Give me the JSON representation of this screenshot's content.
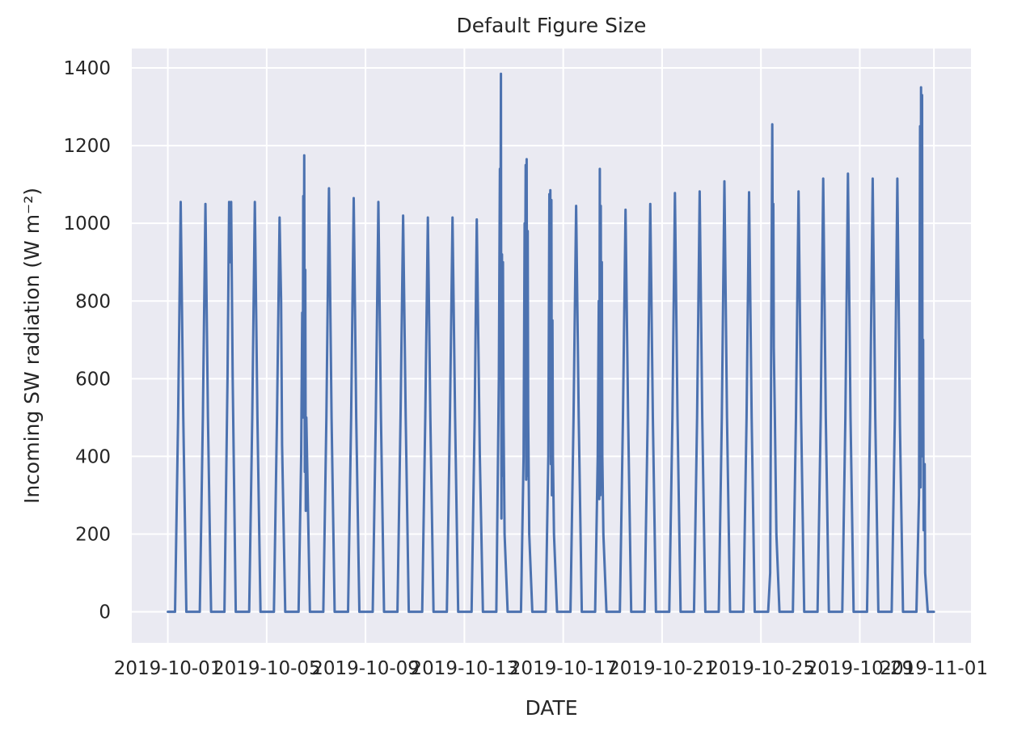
{
  "chart_data": {
    "type": "line",
    "title": "Default Figure Size",
    "xlabel": "DATE",
    "ylabel": "Incoming SW radiation (W m⁻²)",
    "x_range": [
      "2019-09-29T13:00",
      "2019-11-02T12:00"
    ],
    "ylim": [
      -80,
      1450
    ],
    "x_ticks": [
      "2019-10-01",
      "2019-10-05",
      "2019-10-09",
      "2019-10-13",
      "2019-10-17",
      "2019-10-21",
      "2019-10-25",
      "2019-10-29",
      "2019-11-01"
    ],
    "y_ticks": [
      0,
      200,
      400,
      600,
      800,
      1000,
      1200,
      1400
    ],
    "grid": true,
    "colors": {
      "background": "#eaeaf2",
      "grid": "#ffffff",
      "line": "#4c72b0"
    },
    "series": [
      {
        "name": "",
        "points": [
          [
            "2019-10-01T00:00",
            0
          ],
          [
            "2019-10-01T07:00",
            0
          ],
          [
            "2019-10-01T10:00",
            500
          ],
          [
            "2019-10-01T12:30",
            1055
          ],
          [
            "2019-10-01T15:00",
            500
          ],
          [
            "2019-10-01T18:00",
            0
          ],
          [
            "2019-10-02T07:00",
            0
          ],
          [
            "2019-10-02T10:00",
            500
          ],
          [
            "2019-10-02T12:30",
            1050
          ],
          [
            "2019-10-02T15:00",
            500
          ],
          [
            "2019-10-02T18:00",
            0
          ],
          [
            "2019-10-03T07:00",
            0
          ],
          [
            "2019-10-03T10:00",
            600
          ],
          [
            "2019-10-03T11:30",
            1055
          ],
          [
            "2019-10-03T12:30",
            900
          ],
          [
            "2019-10-03T13:30",
            1055
          ],
          [
            "2019-10-03T15:00",
            600
          ],
          [
            "2019-10-03T18:00",
            0
          ],
          [
            "2019-10-04T07:00",
            0
          ],
          [
            "2019-10-04T10:00",
            500
          ],
          [
            "2019-10-04T12:30",
            1055
          ],
          [
            "2019-10-04T15:00",
            500
          ],
          [
            "2019-10-04T18:00",
            0
          ],
          [
            "2019-10-05T07:00",
            0
          ],
          [
            "2019-10-05T10:00",
            500
          ],
          [
            "2019-10-05T12:30",
            1015
          ],
          [
            "2019-10-05T14:00",
            800
          ],
          [
            "2019-10-05T15:00",
            430
          ],
          [
            "2019-10-05T18:00",
            0
          ],
          [
            "2019-10-06T07:00",
            0
          ],
          [
            "2019-10-06T09:30",
            400
          ],
          [
            "2019-10-06T10:30",
            770
          ],
          [
            "2019-10-06T11:00",
            500
          ],
          [
            "2019-10-06T11:30",
            1070
          ],
          [
            "2019-10-06T12:00",
            720
          ],
          [
            "2019-10-06T12:30",
            1175
          ],
          [
            "2019-10-06T13:00",
            360
          ],
          [
            "2019-10-06T13:30",
            880
          ],
          [
            "2019-10-06T14:00",
            260
          ],
          [
            "2019-10-06T14:30",
            500
          ],
          [
            "2019-10-06T18:00",
            0
          ],
          [
            "2019-10-07T07:00",
            0
          ],
          [
            "2019-10-07T10:00",
            500
          ],
          [
            "2019-10-07T12:30",
            1090
          ],
          [
            "2019-10-07T15:00",
            500
          ],
          [
            "2019-10-07T18:00",
            0
          ],
          [
            "2019-10-08T07:00",
            0
          ],
          [
            "2019-10-08T10:00",
            500
          ],
          [
            "2019-10-08T12:30",
            1065
          ],
          [
            "2019-10-08T15:00",
            500
          ],
          [
            "2019-10-08T18:00",
            0
          ],
          [
            "2019-10-09T07:00",
            0
          ],
          [
            "2019-10-09T10:00",
            500
          ],
          [
            "2019-10-09T12:30",
            1055
          ],
          [
            "2019-10-09T15:00",
            500
          ],
          [
            "2019-10-09T18:00",
            0
          ],
          [
            "2019-10-10T07:00",
            0
          ],
          [
            "2019-10-10T10:00",
            500
          ],
          [
            "2019-10-10T12:30",
            1020
          ],
          [
            "2019-10-10T15:00",
            500
          ],
          [
            "2019-10-10T18:00",
            0
          ],
          [
            "2019-10-11T07:00",
            0
          ],
          [
            "2019-10-11T10:00",
            500
          ],
          [
            "2019-10-11T12:30",
            1015
          ],
          [
            "2019-10-11T15:00",
            500
          ],
          [
            "2019-10-11T18:00",
            0
          ],
          [
            "2019-10-12T07:00",
            0
          ],
          [
            "2019-10-12T10:00",
            500
          ],
          [
            "2019-10-12T12:30",
            1015
          ],
          [
            "2019-10-12T15:00",
            500
          ],
          [
            "2019-10-12T18:00",
            0
          ],
          [
            "2019-10-13T07:00",
            0
          ],
          [
            "2019-10-13T10:00",
            500
          ],
          [
            "2019-10-13T12:00",
            1010
          ],
          [
            "2019-10-13T13:30",
            700
          ],
          [
            "2019-10-13T15:00",
            400
          ],
          [
            "2019-10-13T18:00",
            0
          ],
          [
            "2019-10-14T07:00",
            0
          ],
          [
            "2019-10-14T09:30",
            600
          ],
          [
            "2019-10-14T10:30",
            1140
          ],
          [
            "2019-10-14T11:00",
            950
          ],
          [
            "2019-10-14T11:30",
            1385
          ],
          [
            "2019-10-14T12:00",
            240
          ],
          [
            "2019-10-14T12:30",
            920
          ],
          [
            "2019-10-14T13:00",
            350
          ],
          [
            "2019-10-14T13:30",
            900
          ],
          [
            "2019-10-14T14:00",
            500
          ],
          [
            "2019-10-14T15:00",
            200
          ],
          [
            "2019-10-14T18:00",
            0
          ],
          [
            "2019-10-15T07:00",
            0
          ],
          [
            "2019-10-15T09:30",
            400
          ],
          [
            "2019-10-15T10:30",
            1000
          ],
          [
            "2019-10-15T11:00",
            800
          ],
          [
            "2019-10-15T11:30",
            1150
          ],
          [
            "2019-10-15T12:00",
            340
          ],
          [
            "2019-10-15T12:30",
            1165
          ],
          [
            "2019-10-15T13:00",
            350
          ],
          [
            "2019-10-15T13:30",
            980
          ],
          [
            "2019-10-15T14:00",
            500
          ],
          [
            "2019-10-15T15:00",
            200
          ],
          [
            "2019-10-15T18:00",
            0
          ],
          [
            "2019-10-16T07:00",
            0
          ],
          [
            "2019-10-16T09:30",
            400
          ],
          [
            "2019-10-16T10:30",
            1075
          ],
          [
            "2019-10-16T11:00",
            700
          ],
          [
            "2019-10-16T11:30",
            1085
          ],
          [
            "2019-10-16T12:00",
            380
          ],
          [
            "2019-10-16T12:30",
            1060
          ],
          [
            "2019-10-16T13:00",
            300
          ],
          [
            "2019-10-16T13:30",
            750
          ],
          [
            "2019-10-16T14:00",
            400
          ],
          [
            "2019-10-16T15:00",
            200
          ],
          [
            "2019-10-16T18:00",
            0
          ],
          [
            "2019-10-17T07:00",
            0
          ],
          [
            "2019-10-17T10:00",
            500
          ],
          [
            "2019-10-17T12:30",
            1045
          ],
          [
            "2019-10-17T15:00",
            500
          ],
          [
            "2019-10-17T18:00",
            0
          ],
          [
            "2019-10-18T07:00",
            0
          ],
          [
            "2019-10-18T09:30",
            400
          ],
          [
            "2019-10-18T10:30",
            800
          ],
          [
            "2019-10-18T11:00",
            290
          ],
          [
            "2019-10-18T11:30",
            1140
          ],
          [
            "2019-10-18T12:00",
            300
          ],
          [
            "2019-10-18T12:30",
            1045
          ],
          [
            "2019-10-18T13:00",
            340
          ],
          [
            "2019-10-18T13:30",
            900
          ],
          [
            "2019-10-18T14:00",
            400
          ],
          [
            "2019-10-18T15:00",
            200
          ],
          [
            "2019-10-18T18:00",
            0
          ],
          [
            "2019-10-19T07:00",
            0
          ],
          [
            "2019-10-19T10:00",
            500
          ],
          [
            "2019-10-19T12:30",
            1035
          ],
          [
            "2019-10-19T15:00",
            500
          ],
          [
            "2019-10-19T18:00",
            0
          ],
          [
            "2019-10-20T07:00",
            0
          ],
          [
            "2019-10-20T10:00",
            500
          ],
          [
            "2019-10-20T12:30",
            1050
          ],
          [
            "2019-10-20T15:00",
            500
          ],
          [
            "2019-10-20T18:00",
            0
          ],
          [
            "2019-10-21T07:00",
            0
          ],
          [
            "2019-10-21T10:00",
            500
          ],
          [
            "2019-10-21T12:30",
            1078
          ],
          [
            "2019-10-21T15:00",
            500
          ],
          [
            "2019-10-21T18:00",
            0
          ],
          [
            "2019-10-22T07:00",
            0
          ],
          [
            "2019-10-22T10:00",
            500
          ],
          [
            "2019-10-22T12:30",
            1082
          ],
          [
            "2019-10-22T15:00",
            500
          ],
          [
            "2019-10-22T18:00",
            0
          ],
          [
            "2019-10-23T07:00",
            0
          ],
          [
            "2019-10-23T10:00",
            500
          ],
          [
            "2019-10-23T12:30",
            1108
          ],
          [
            "2019-10-23T15:00",
            500
          ],
          [
            "2019-10-23T18:00",
            0
          ],
          [
            "2019-10-24T07:00",
            0
          ],
          [
            "2019-10-24T10:00",
            500
          ],
          [
            "2019-10-24T12:30",
            1080
          ],
          [
            "2019-10-24T15:00",
            500
          ],
          [
            "2019-10-24T18:00",
            0
          ],
          [
            "2019-10-25T07:00",
            0
          ],
          [
            "2019-10-25T09:00",
            100
          ],
          [
            "2019-10-25T10:00",
            700
          ],
          [
            "2019-10-25T11:00",
            1255
          ],
          [
            "2019-10-25T11:30",
            900
          ],
          [
            "2019-10-25T12:00",
            1050
          ],
          [
            "2019-10-25T12:30",
            680
          ],
          [
            "2019-10-25T13:30",
            500
          ],
          [
            "2019-10-25T15:00",
            200
          ],
          [
            "2019-10-25T18:00",
            0
          ],
          [
            "2019-10-26T07:00",
            0
          ],
          [
            "2019-10-26T10:00",
            500
          ],
          [
            "2019-10-26T12:30",
            1082
          ],
          [
            "2019-10-26T15:00",
            500
          ],
          [
            "2019-10-26T18:00",
            0
          ],
          [
            "2019-10-27T07:00",
            0
          ],
          [
            "2019-10-27T10:00",
            500
          ],
          [
            "2019-10-27T12:30",
            1115
          ],
          [
            "2019-10-27T15:00",
            500
          ],
          [
            "2019-10-27T18:00",
            0
          ],
          [
            "2019-10-28T07:00",
            0
          ],
          [
            "2019-10-28T10:00",
            500
          ],
          [
            "2019-10-28T12:30",
            1128
          ],
          [
            "2019-10-28T15:00",
            500
          ],
          [
            "2019-10-28T18:00",
            0
          ],
          [
            "2019-10-29T07:00",
            0
          ],
          [
            "2019-10-29T10:00",
            500
          ],
          [
            "2019-10-29T12:30",
            1115
          ],
          [
            "2019-10-29T15:00",
            500
          ],
          [
            "2019-10-29T18:00",
            0
          ],
          [
            "2019-10-30T07:00",
            0
          ],
          [
            "2019-10-30T10:00",
            500
          ],
          [
            "2019-10-30T12:30",
            1115
          ],
          [
            "2019-10-30T15:00",
            480
          ],
          [
            "2019-10-30T18:00",
            0
          ],
          [
            "2019-10-31T07:00",
            0
          ],
          [
            "2019-10-31T09:30",
            300
          ],
          [
            "2019-10-31T10:30",
            1250
          ],
          [
            "2019-10-31T11:00",
            320
          ],
          [
            "2019-10-31T11:30",
            1350
          ],
          [
            "2019-10-31T12:00",
            400
          ],
          [
            "2019-10-31T12:30",
            1330
          ],
          [
            "2019-10-31T13:00",
            420
          ],
          [
            "2019-10-31T13:30",
            700
          ],
          [
            "2019-10-31T14:00",
            210
          ],
          [
            "2019-10-31T15:00",
            380
          ],
          [
            "2019-10-31T15:30",
            100
          ],
          [
            "2019-10-31T18:00",
            0
          ],
          [
            "2019-11-01T00:00",
            0
          ]
        ]
      }
    ]
  }
}
